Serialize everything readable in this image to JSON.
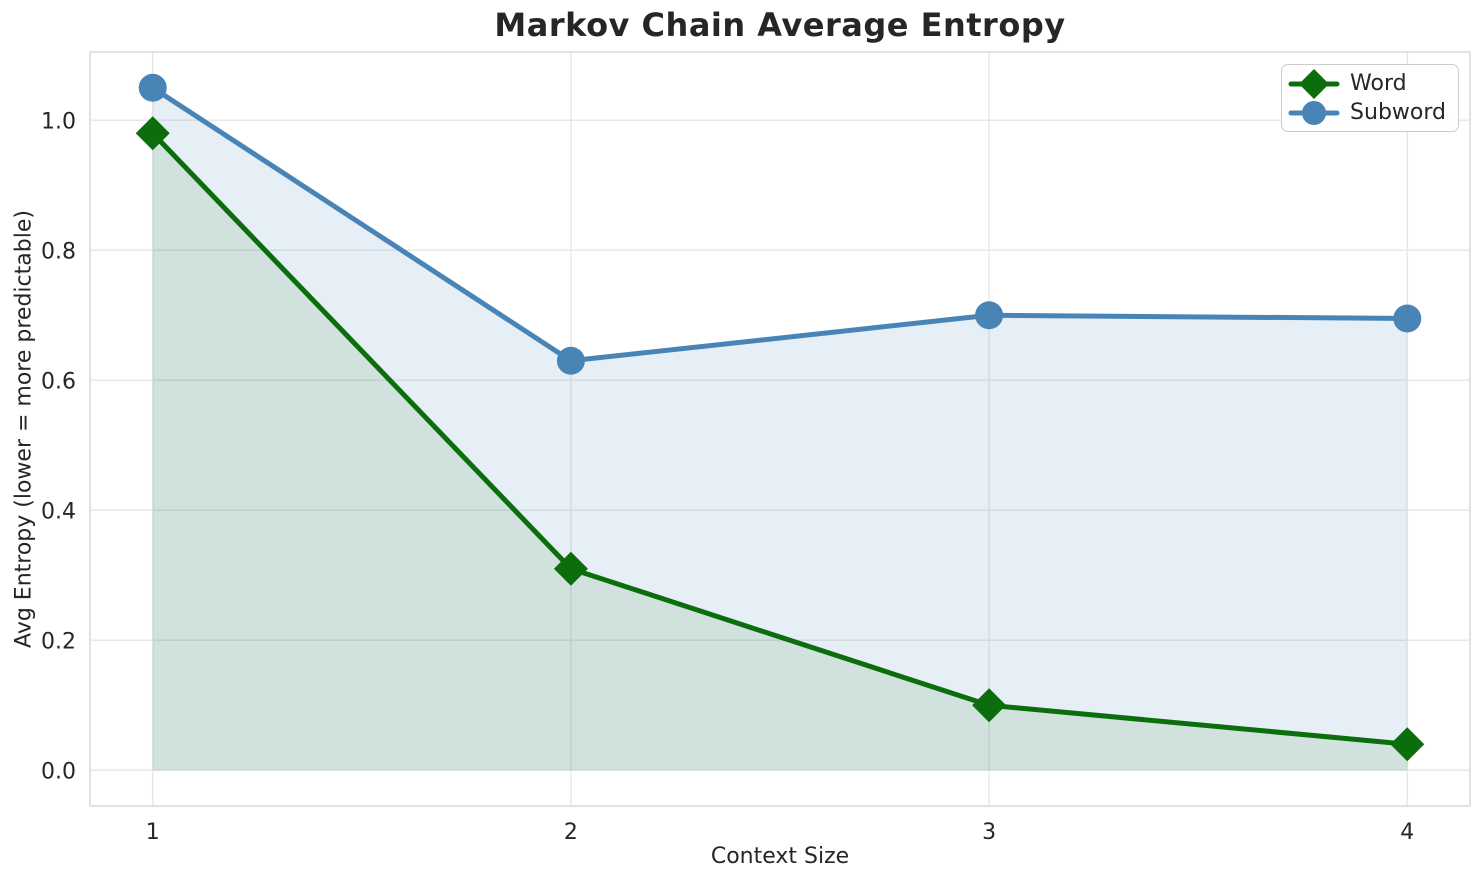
{
  "chart_data": {
    "type": "line",
    "title": "Markov Chain Average Entropy",
    "xlabel": "Context Size",
    "ylabel": "Avg Entropy (lower = more predictable)",
    "x": [
      1,
      2,
      3,
      4
    ],
    "series": [
      {
        "name": "Word",
        "values": [
          0.98,
          0.31,
          0.1,
          0.04
        ],
        "color": "#0b6d0b",
        "marker": "diamond",
        "fill_alpha": 0.1
      },
      {
        "name": "Subword",
        "values": [
          1.05,
          0.63,
          0.7,
          0.695
        ],
        "color": "#4884b6",
        "marker": "circle",
        "fill_alpha": 0.13
      }
    ],
    "xlim": [
      0.85,
      4.15
    ],
    "ylim": [
      -0.055,
      1.105
    ],
    "xticks": {
      "values": [
        1,
        2,
        3,
        4
      ],
      "labels": [
        "1",
        "2",
        "3",
        "4"
      ]
    },
    "yticks": {
      "values": [
        0.0,
        0.2,
        0.4,
        0.6,
        0.8,
        1.0
      ],
      "labels": [
        "0.0",
        "0.2",
        "0.4",
        "0.6",
        "0.8",
        "1.0"
      ]
    },
    "grid": true,
    "area_fill_to_zero": true,
    "legend": {
      "position": "upper right",
      "entries": [
        "Word",
        "Subword"
      ]
    },
    "style": {
      "background": "#ffffff",
      "grid_color": "#e8e8e8",
      "spine_color": "#d9d9d9",
      "text_color": "#262626",
      "title_color": "#262626",
      "line_width": 5
    }
  }
}
